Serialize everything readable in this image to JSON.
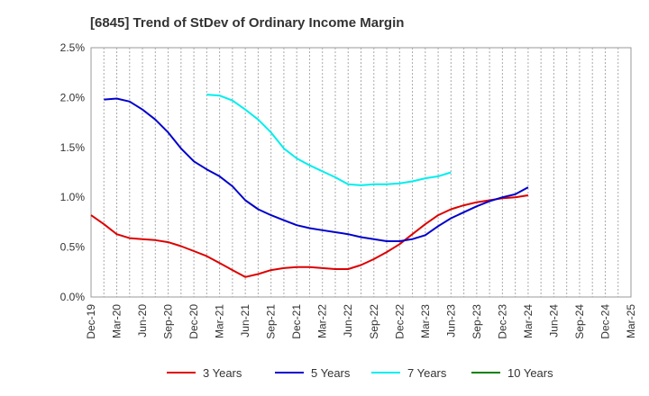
{
  "chart_data": {
    "type": "line",
    "title": "[6845]  Trend of StDev of Ordinary Income Margin",
    "xlabel": "",
    "ylabel": "",
    "ylim": [
      0,
      2.5
    ],
    "y_ticks": [
      "0.0%",
      "0.5%",
      "1.0%",
      "1.5%",
      "2.0%",
      "2.5%"
    ],
    "x_ticks": [
      "Dec-19",
      "Mar-20",
      "Jun-20",
      "Sep-20",
      "Dec-20",
      "Mar-21",
      "Jun-21",
      "Sep-21",
      "Dec-21",
      "Mar-22",
      "Jun-22",
      "Sep-22",
      "Dec-22",
      "Mar-23",
      "Jun-23",
      "Sep-23",
      "Dec-23",
      "Mar-24",
      "Jun-24",
      "Sep-24",
      "Dec-24",
      "Mar-25"
    ],
    "grid": "vertical-dotted",
    "legend_position": "bottom",
    "series": [
      {
        "name": "3 Years",
        "color": "#dd0000",
        "points": [
          [
            0,
            0.82
          ],
          [
            1,
            0.73
          ],
          [
            2,
            0.63
          ],
          [
            3,
            0.59
          ],
          [
            4,
            0.58
          ],
          [
            5,
            0.57
          ],
          [
            6,
            0.55
          ],
          [
            7,
            0.51
          ],
          [
            8,
            0.46
          ],
          [
            9,
            0.41
          ],
          [
            10,
            0.34
          ],
          [
            11,
            0.27
          ],
          [
            12,
            0.2
          ],
          [
            13,
            0.23
          ],
          [
            14,
            0.27
          ],
          [
            15,
            0.29
          ],
          [
            16,
            0.3
          ],
          [
            17,
            0.3
          ],
          [
            18,
            0.29
          ],
          [
            19,
            0.28
          ],
          [
            20,
            0.28
          ],
          [
            21,
            0.32
          ],
          [
            22,
            0.38
          ],
          [
            23,
            0.45
          ],
          [
            24,
            0.53
          ],
          [
            25,
            0.63
          ],
          [
            26,
            0.73
          ],
          [
            27,
            0.82
          ],
          [
            28,
            0.88
          ],
          [
            29,
            0.92
          ],
          [
            30,
            0.95
          ],
          [
            31,
            0.97
          ],
          [
            32,
            0.99
          ],
          [
            33,
            1.0
          ],
          [
            34,
            1.02
          ]
        ]
      },
      {
        "name": "5 Years",
        "color": "#0000cc",
        "points": [
          [
            1,
            1.98
          ],
          [
            2,
            1.99
          ],
          [
            3,
            1.96
          ],
          [
            4,
            1.88
          ],
          [
            5,
            1.78
          ],
          [
            6,
            1.65
          ],
          [
            7,
            1.49
          ],
          [
            8,
            1.36
          ],
          [
            9,
            1.28
          ],
          [
            10,
            1.21
          ],
          [
            11,
            1.11
          ],
          [
            12,
            0.97
          ],
          [
            13,
            0.88
          ],
          [
            14,
            0.82
          ],
          [
            15,
            0.77
          ],
          [
            16,
            0.72
          ],
          [
            17,
            0.69
          ],
          [
            18,
            0.67
          ],
          [
            19,
            0.65
          ],
          [
            20,
            0.63
          ],
          [
            21,
            0.6
          ],
          [
            22,
            0.58
          ],
          [
            23,
            0.56
          ],
          [
            24,
            0.56
          ],
          [
            25,
            0.58
          ],
          [
            26,
            0.62
          ],
          [
            27,
            0.71
          ],
          [
            28,
            0.79
          ],
          [
            29,
            0.85
          ],
          [
            30,
            0.91
          ],
          [
            31,
            0.96
          ],
          [
            32,
            1.0
          ],
          [
            33,
            1.03
          ],
          [
            34,
            1.1
          ]
        ]
      },
      {
        "name": "7 Years",
        "color": "#00eeee",
        "points": [
          [
            9,
            2.03
          ],
          [
            10,
            2.02
          ],
          [
            11,
            1.97
          ],
          [
            12,
            1.88
          ],
          [
            13,
            1.78
          ],
          [
            14,
            1.65
          ],
          [
            15,
            1.49
          ],
          [
            16,
            1.39
          ],
          [
            17,
            1.32
          ],
          [
            18,
            1.26
          ],
          [
            19,
            1.2
          ],
          [
            20,
            1.13
          ],
          [
            21,
            1.12
          ],
          [
            22,
            1.13
          ],
          [
            23,
            1.13
          ],
          [
            24,
            1.14
          ],
          [
            25,
            1.16
          ],
          [
            26,
            1.19
          ],
          [
            27,
            1.21
          ],
          [
            28,
            1.25
          ]
        ]
      },
      {
        "name": "10 Years",
        "color": "#008000",
        "points": []
      }
    ]
  }
}
